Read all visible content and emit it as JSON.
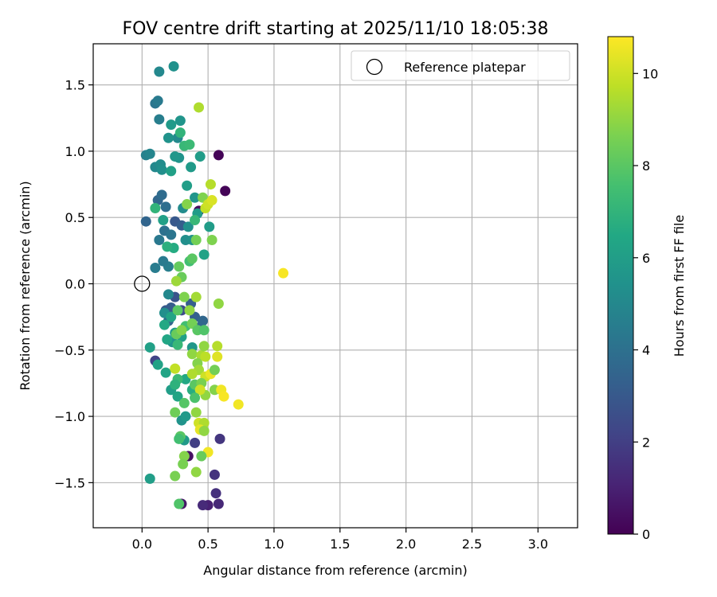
{
  "chart_data": {
    "type": "scatter",
    "title": "FOV centre drift starting at 2025/11/10 18:05:38",
    "xlabel": "Angular distance from reference (arcmin)",
    "ylabel": "Rotation from reference (arcmin)",
    "xlim": [
      -0.37,
      3.3
    ],
    "ylim": [
      -1.84,
      1.81
    ],
    "xticks": [
      0.0,
      0.5,
      1.0,
      1.5,
      2.0,
      2.5,
      3.0
    ],
    "xtick_labels": [
      "0.0",
      "0.5",
      "1.0",
      "1.5",
      "2.0",
      "2.5",
      "3.0"
    ],
    "yticks": [
      -1.5,
      -1.0,
      -0.5,
      0.0,
      0.5,
      1.0,
      1.5
    ],
    "ytick_labels": [
      "−1.5",
      "−1.0",
      "−0.5",
      "0.0",
      "0.5",
      "1.0",
      "1.5"
    ],
    "grid": true,
    "legend": {
      "position": "top-right",
      "entries": [
        "Reference platepar"
      ]
    },
    "reference_point": {
      "x": 0.0,
      "y": 0.0,
      "label": "Reference platepar"
    },
    "colorbar": {
      "label": "Hours from first FF file",
      "min": 0,
      "max": 10.8,
      "ticks": [
        0,
        2,
        4,
        6,
        8,
        10
      ],
      "tick_labels": [
        "0",
        "2",
        "4",
        "6",
        "8",
        "10"
      ],
      "colormap": "viridis"
    },
    "points": [
      {
        "x": 0.58,
        "y": 0.97,
        "h": 0.1
      },
      {
        "x": 0.63,
        "y": 0.7,
        "h": 0.1
      },
      {
        "x": 0.43,
        "y": 0.55,
        "h": 0.3
      },
      {
        "x": 0.35,
        "y": -1.3,
        "h": 0.5
      },
      {
        "x": 0.3,
        "y": -1.66,
        "h": 0.7
      },
      {
        "x": 0.5,
        "y": -1.67,
        "h": 1.0
      },
      {
        "x": 0.58,
        "y": -1.66,
        "h": 1.2
      },
      {
        "x": 0.46,
        "y": -1.67,
        "h": 1.3
      },
      {
        "x": 0.56,
        "y": -1.58,
        "h": 1.5
      },
      {
        "x": 0.55,
        "y": -1.44,
        "h": 1.6
      },
      {
        "x": 0.59,
        "y": -1.17,
        "h": 1.7
      },
      {
        "x": 0.4,
        "y": -1.2,
        "h": 2.0
      },
      {
        "x": 0.1,
        "y": -0.58,
        "h": 2.2
      },
      {
        "x": 0.3,
        "y": -0.2,
        "h": 2.5
      },
      {
        "x": 0.25,
        "y": -0.1,
        "h": 2.8
      },
      {
        "x": 0.18,
        "y": -0.2,
        "h": 3.0
      },
      {
        "x": 0.22,
        "y": -0.18,
        "h": 3.1
      },
      {
        "x": 0.37,
        "y": -0.15,
        "h": 3.2
      },
      {
        "x": 0.4,
        "y": -0.25,
        "h": 3.3
      },
      {
        "x": 0.43,
        "y": -0.33,
        "h": 3.4
      },
      {
        "x": 0.46,
        "y": -0.28,
        "h": 3.6
      },
      {
        "x": 0.28,
        "y": -0.37,
        "h": 3.4
      },
      {
        "x": 0.2,
        "y": -0.28,
        "h": 3.5
      },
      {
        "x": 0.25,
        "y": 0.47,
        "h": 3.0
      },
      {
        "x": 0.3,
        "y": 0.44,
        "h": 3.2
      },
      {
        "x": 0.03,
        "y": 0.47,
        "h": 3.5
      },
      {
        "x": 0.12,
        "y": 0.63,
        "h": 3.6
      },
      {
        "x": 0.15,
        "y": 0.67,
        "h": 3.8
      },
      {
        "x": 0.18,
        "y": 0.58,
        "h": 3.9
      },
      {
        "x": 0.17,
        "y": 0.4,
        "h": 4.0
      },
      {
        "x": 0.22,
        "y": 0.37,
        "h": 4.2
      },
      {
        "x": 0.13,
        "y": 0.33,
        "h": 4.3
      },
      {
        "x": 0.1,
        "y": 0.12,
        "h": 4.5
      },
      {
        "x": 0.2,
        "y": 0.13,
        "h": 4.6
      },
      {
        "x": 0.16,
        "y": 0.17,
        "h": 4.4
      },
      {
        "x": 0.1,
        "y": 1.36,
        "h": 4.2
      },
      {
        "x": 0.12,
        "y": 1.38,
        "h": 4.4
      },
      {
        "x": 0.13,
        "y": 1.24,
        "h": 4.6
      },
      {
        "x": 0.13,
        "y": 1.6,
        "h": 5.0
      },
      {
        "x": 0.24,
        "y": 1.64,
        "h": 5.4
      },
      {
        "x": 0.03,
        "y": 0.97,
        "h": 4.7
      },
      {
        "x": 0.06,
        "y": 0.98,
        "h": 4.9
      },
      {
        "x": 0.1,
        "y": 0.88,
        "h": 5.0
      },
      {
        "x": 0.14,
        "y": 0.9,
        "h": 5.2
      },
      {
        "x": 0.15,
        "y": 0.86,
        "h": 5.3
      },
      {
        "x": 0.27,
        "y": 1.1,
        "h": 5.1
      },
      {
        "x": 0.2,
        "y": 1.1,
        "h": 5.5
      },
      {
        "x": 0.29,
        "y": 1.23,
        "h": 5.6
      },
      {
        "x": 0.22,
        "y": 1.2,
        "h": 5.8
      },
      {
        "x": 0.28,
        "y": 0.95,
        "h": 5.5
      },
      {
        "x": 0.25,
        "y": 0.96,
        "h": 5.7
      },
      {
        "x": 0.37,
        "y": 0.88,
        "h": 5.8
      },
      {
        "x": 0.44,
        "y": 0.96,
        "h": 5.9
      },
      {
        "x": 0.22,
        "y": 0.85,
        "h": 6.1
      },
      {
        "x": 0.34,
        "y": 0.74,
        "h": 6.0
      },
      {
        "x": 0.31,
        "y": 0.57,
        "h": 5.2
      },
      {
        "x": 0.4,
        "y": 0.65,
        "h": 5.6
      },
      {
        "x": 0.42,
        "y": 0.53,
        "h": 5.9
      },
      {
        "x": 0.35,
        "y": 0.43,
        "h": 5.4
      },
      {
        "x": 0.33,
        "y": 0.33,
        "h": 5.3
      },
      {
        "x": 0.38,
        "y": 0.33,
        "h": 5.5
      },
      {
        "x": 0.51,
        "y": 0.43,
        "h": 5.9
      },
      {
        "x": 0.47,
        "y": 0.22,
        "h": 6.2
      },
      {
        "x": 0.24,
        "y": 0.27,
        "h": 6.6
      },
      {
        "x": 0.19,
        "y": 0.28,
        "h": 6.8
      },
      {
        "x": 0.1,
        "y": 0.57,
        "h": 7.0
      },
      {
        "x": 0.16,
        "y": 0.48,
        "h": 6.1
      },
      {
        "x": 0.2,
        "y": -0.08,
        "h": 5.0
      },
      {
        "x": 0.17,
        "y": -0.22,
        "h": 5.3
      },
      {
        "x": 0.22,
        "y": -0.25,
        "h": 6.3
      },
      {
        "x": 0.17,
        "y": -0.31,
        "h": 6.5
      },
      {
        "x": 0.25,
        "y": -0.37,
        "h": 5.9
      },
      {
        "x": 0.3,
        "y": -0.4,
        "h": 6.1
      },
      {
        "x": 0.23,
        "y": -0.44,
        "h": 5.5
      },
      {
        "x": 0.19,
        "y": -0.42,
        "h": 6.4
      },
      {
        "x": 0.38,
        "y": -0.48,
        "h": 5.7
      },
      {
        "x": 0.06,
        "y": -0.48,
        "h": 6.1
      },
      {
        "x": 0.12,
        "y": -0.61,
        "h": 6.2
      },
      {
        "x": 0.18,
        "y": -0.67,
        "h": 6.3
      },
      {
        "x": 0.22,
        "y": -0.8,
        "h": 6.0
      },
      {
        "x": 0.27,
        "y": -0.85,
        "h": 6.3
      },
      {
        "x": 0.33,
        "y": -0.72,
        "h": 6.5
      },
      {
        "x": 0.38,
        "y": -0.8,
        "h": 6.7
      },
      {
        "x": 0.3,
        "y": -1.03,
        "h": 5.5
      },
      {
        "x": 0.33,
        "y": -1.0,
        "h": 5.8
      },
      {
        "x": 0.32,
        "y": -1.18,
        "h": 5.8
      },
      {
        "x": 0.06,
        "y": -1.47,
        "h": 6.0
      },
      {
        "x": 0.29,
        "y": 1.14,
        "h": 7.0
      },
      {
        "x": 0.32,
        "y": 1.04,
        "h": 7.2
      },
      {
        "x": 0.36,
        "y": 1.05,
        "h": 7.3
      },
      {
        "x": 0.4,
        "y": 0.48,
        "h": 7.2
      },
      {
        "x": 0.36,
        "y": 0.17,
        "h": 7.5
      },
      {
        "x": 0.38,
        "y": 0.19,
        "h": 8.0
      },
      {
        "x": 0.28,
        "y": 0.13,
        "h": 8.2
      },
      {
        "x": 0.3,
        "y": 0.05,
        "h": 8.3
      },
      {
        "x": 0.41,
        "y": 0.33,
        "h": 8.5
      },
      {
        "x": 0.53,
        "y": 0.33,
        "h": 8.7
      },
      {
        "x": 0.34,
        "y": 0.6,
        "h": 8.8
      },
      {
        "x": 0.46,
        "y": 0.65,
        "h": 8.7
      },
      {
        "x": 0.43,
        "y": 1.33,
        "h": 9.5
      },
      {
        "x": 0.52,
        "y": 0.75,
        "h": 9.6
      },
      {
        "x": 0.48,
        "y": 0.57,
        "h": 9.8
      },
      {
        "x": 0.5,
        "y": 0.6,
        "h": 10.0
      },
      {
        "x": 0.53,
        "y": 0.63,
        "h": 10.2
      },
      {
        "x": 0.26,
        "y": 0.02,
        "h": 9.2
      },
      {
        "x": 1.07,
        "y": 0.08,
        "h": 10.7
      },
      {
        "x": 0.27,
        "y": -0.2,
        "h": 8.0
      },
      {
        "x": 0.32,
        "y": -0.1,
        "h": 8.7
      },
      {
        "x": 0.36,
        "y": -0.2,
        "h": 9.0
      },
      {
        "x": 0.41,
        "y": -0.1,
        "h": 9.3
      },
      {
        "x": 0.58,
        "y": -0.15,
        "h": 9.0
      },
      {
        "x": 0.33,
        "y": -0.32,
        "h": 7.5
      },
      {
        "x": 0.38,
        "y": -0.3,
        "h": 8.5
      },
      {
        "x": 0.42,
        "y": -0.35,
        "h": 8.0
      },
      {
        "x": 0.47,
        "y": -0.35,
        "h": 7.8
      },
      {
        "x": 0.26,
        "y": -0.38,
        "h": 8.3
      },
      {
        "x": 0.3,
        "y": -0.35,
        "h": 8.8
      },
      {
        "x": 0.38,
        "y": -0.53,
        "h": 9.0
      },
      {
        "x": 0.45,
        "y": -0.54,
        "h": 9.4
      },
      {
        "x": 0.47,
        "y": -0.47,
        "h": 9.0
      },
      {
        "x": 0.48,
        "y": -0.55,
        "h": 9.7
      },
      {
        "x": 0.57,
        "y": -0.47,
        "h": 9.6
      },
      {
        "x": 0.57,
        "y": -0.55,
        "h": 10.3
      },
      {
        "x": 0.27,
        "y": -0.46,
        "h": 7.2
      },
      {
        "x": 0.42,
        "y": -0.6,
        "h": 8.8
      },
      {
        "x": 0.43,
        "y": -0.65,
        "h": 9.3
      },
      {
        "x": 0.48,
        "y": -0.7,
        "h": 10.0
      },
      {
        "x": 0.52,
        "y": -0.68,
        "h": 10.5
      },
      {
        "x": 0.55,
        "y": -0.65,
        "h": 8.5
      },
      {
        "x": 0.25,
        "y": -0.64,
        "h": 9.8
      },
      {
        "x": 0.38,
        "y": -0.68,
        "h": 9.5
      },
      {
        "x": 0.4,
        "y": -0.76,
        "h": 8.0
      },
      {
        "x": 0.45,
        "y": -0.75,
        "h": 8.6
      },
      {
        "x": 0.48,
        "y": -0.84,
        "h": 9.0
      },
      {
        "x": 0.44,
        "y": -0.8,
        "h": 10.0
      },
      {
        "x": 0.55,
        "y": -0.8,
        "h": 8.8
      },
      {
        "x": 0.6,
        "y": -0.8,
        "h": 10.6
      },
      {
        "x": 0.62,
        "y": -0.85,
        "h": 10.7
      },
      {
        "x": 0.73,
        "y": -0.91,
        "h": 10.6
      },
      {
        "x": 0.27,
        "y": -0.72,
        "h": 7.3
      },
      {
        "x": 0.25,
        "y": -0.76,
        "h": 6.9
      },
      {
        "x": 0.4,
        "y": -0.86,
        "h": 7.7
      },
      {
        "x": 0.32,
        "y": -0.9,
        "h": 7.9
      },
      {
        "x": 0.25,
        "y": -0.97,
        "h": 8.4
      },
      {
        "x": 0.41,
        "y": -0.97,
        "h": 9.0
      },
      {
        "x": 0.43,
        "y": -1.05,
        "h": 10.0
      },
      {
        "x": 0.47,
        "y": -1.05,
        "h": 9.5
      },
      {
        "x": 0.44,
        "y": -1.1,
        "h": 10.4
      },
      {
        "x": 0.47,
        "y": -1.11,
        "h": 9.0
      },
      {
        "x": 0.29,
        "y": -1.15,
        "h": 8.0
      },
      {
        "x": 0.28,
        "y": -1.17,
        "h": 7.5
      },
      {
        "x": 0.5,
        "y": -1.27,
        "h": 10.6
      },
      {
        "x": 0.45,
        "y": -1.3,
        "h": 8.3
      },
      {
        "x": 0.32,
        "y": -1.3,
        "h": 8.8
      },
      {
        "x": 0.31,
        "y": -1.36,
        "h": 8.6
      },
      {
        "x": 0.41,
        "y": -1.42,
        "h": 9.0
      },
      {
        "x": 0.25,
        "y": -1.45,
        "h": 8.6
      },
      {
        "x": 0.28,
        "y": -1.66,
        "h": 7.8
      }
    ]
  }
}
